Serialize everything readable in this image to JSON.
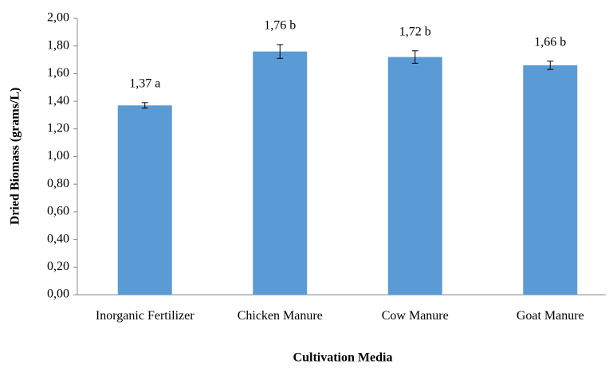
{
  "chart_data": {
    "type": "bar",
    "y_label": "Dried Biomass (grams/L)",
    "x_label": "Cultivation Media",
    "categories": [
      "Inorganic Fertilizer",
      "Chicken Manure",
      "Cow Manure",
      "Goat Manure"
    ],
    "values": [
      1.37,
      1.76,
      1.72,
      1.66
    ],
    "value_labels": [
      "1,37 a",
      "1,76 b",
      "1,72 b",
      "1,66 b"
    ],
    "errors": [
      0.02,
      0.05,
      0.045,
      0.03
    ],
    "color": "#5b9bd5",
    "ylim": [
      0,
      2
    ],
    "yticks": [
      {
        "value": 0,
        "label": "0,00"
      },
      {
        "value": 0.2,
        "label": "0,20"
      },
      {
        "value": 0.4,
        "label": "0,40"
      },
      {
        "value": 0.6,
        "label": "0,60"
      },
      {
        "value": 0.8,
        "label": "0,80"
      },
      {
        "value": 1,
        "label": "1,00"
      },
      {
        "value": 1.2,
        "label": "1,20"
      },
      {
        "value": 1.4,
        "label": "1,40"
      },
      {
        "value": 1.6,
        "label": "1,60"
      },
      {
        "value": 1.8,
        "label": "1,80"
      },
      {
        "value": 2,
        "label": "2,00"
      }
    ],
    "grid": false
  }
}
